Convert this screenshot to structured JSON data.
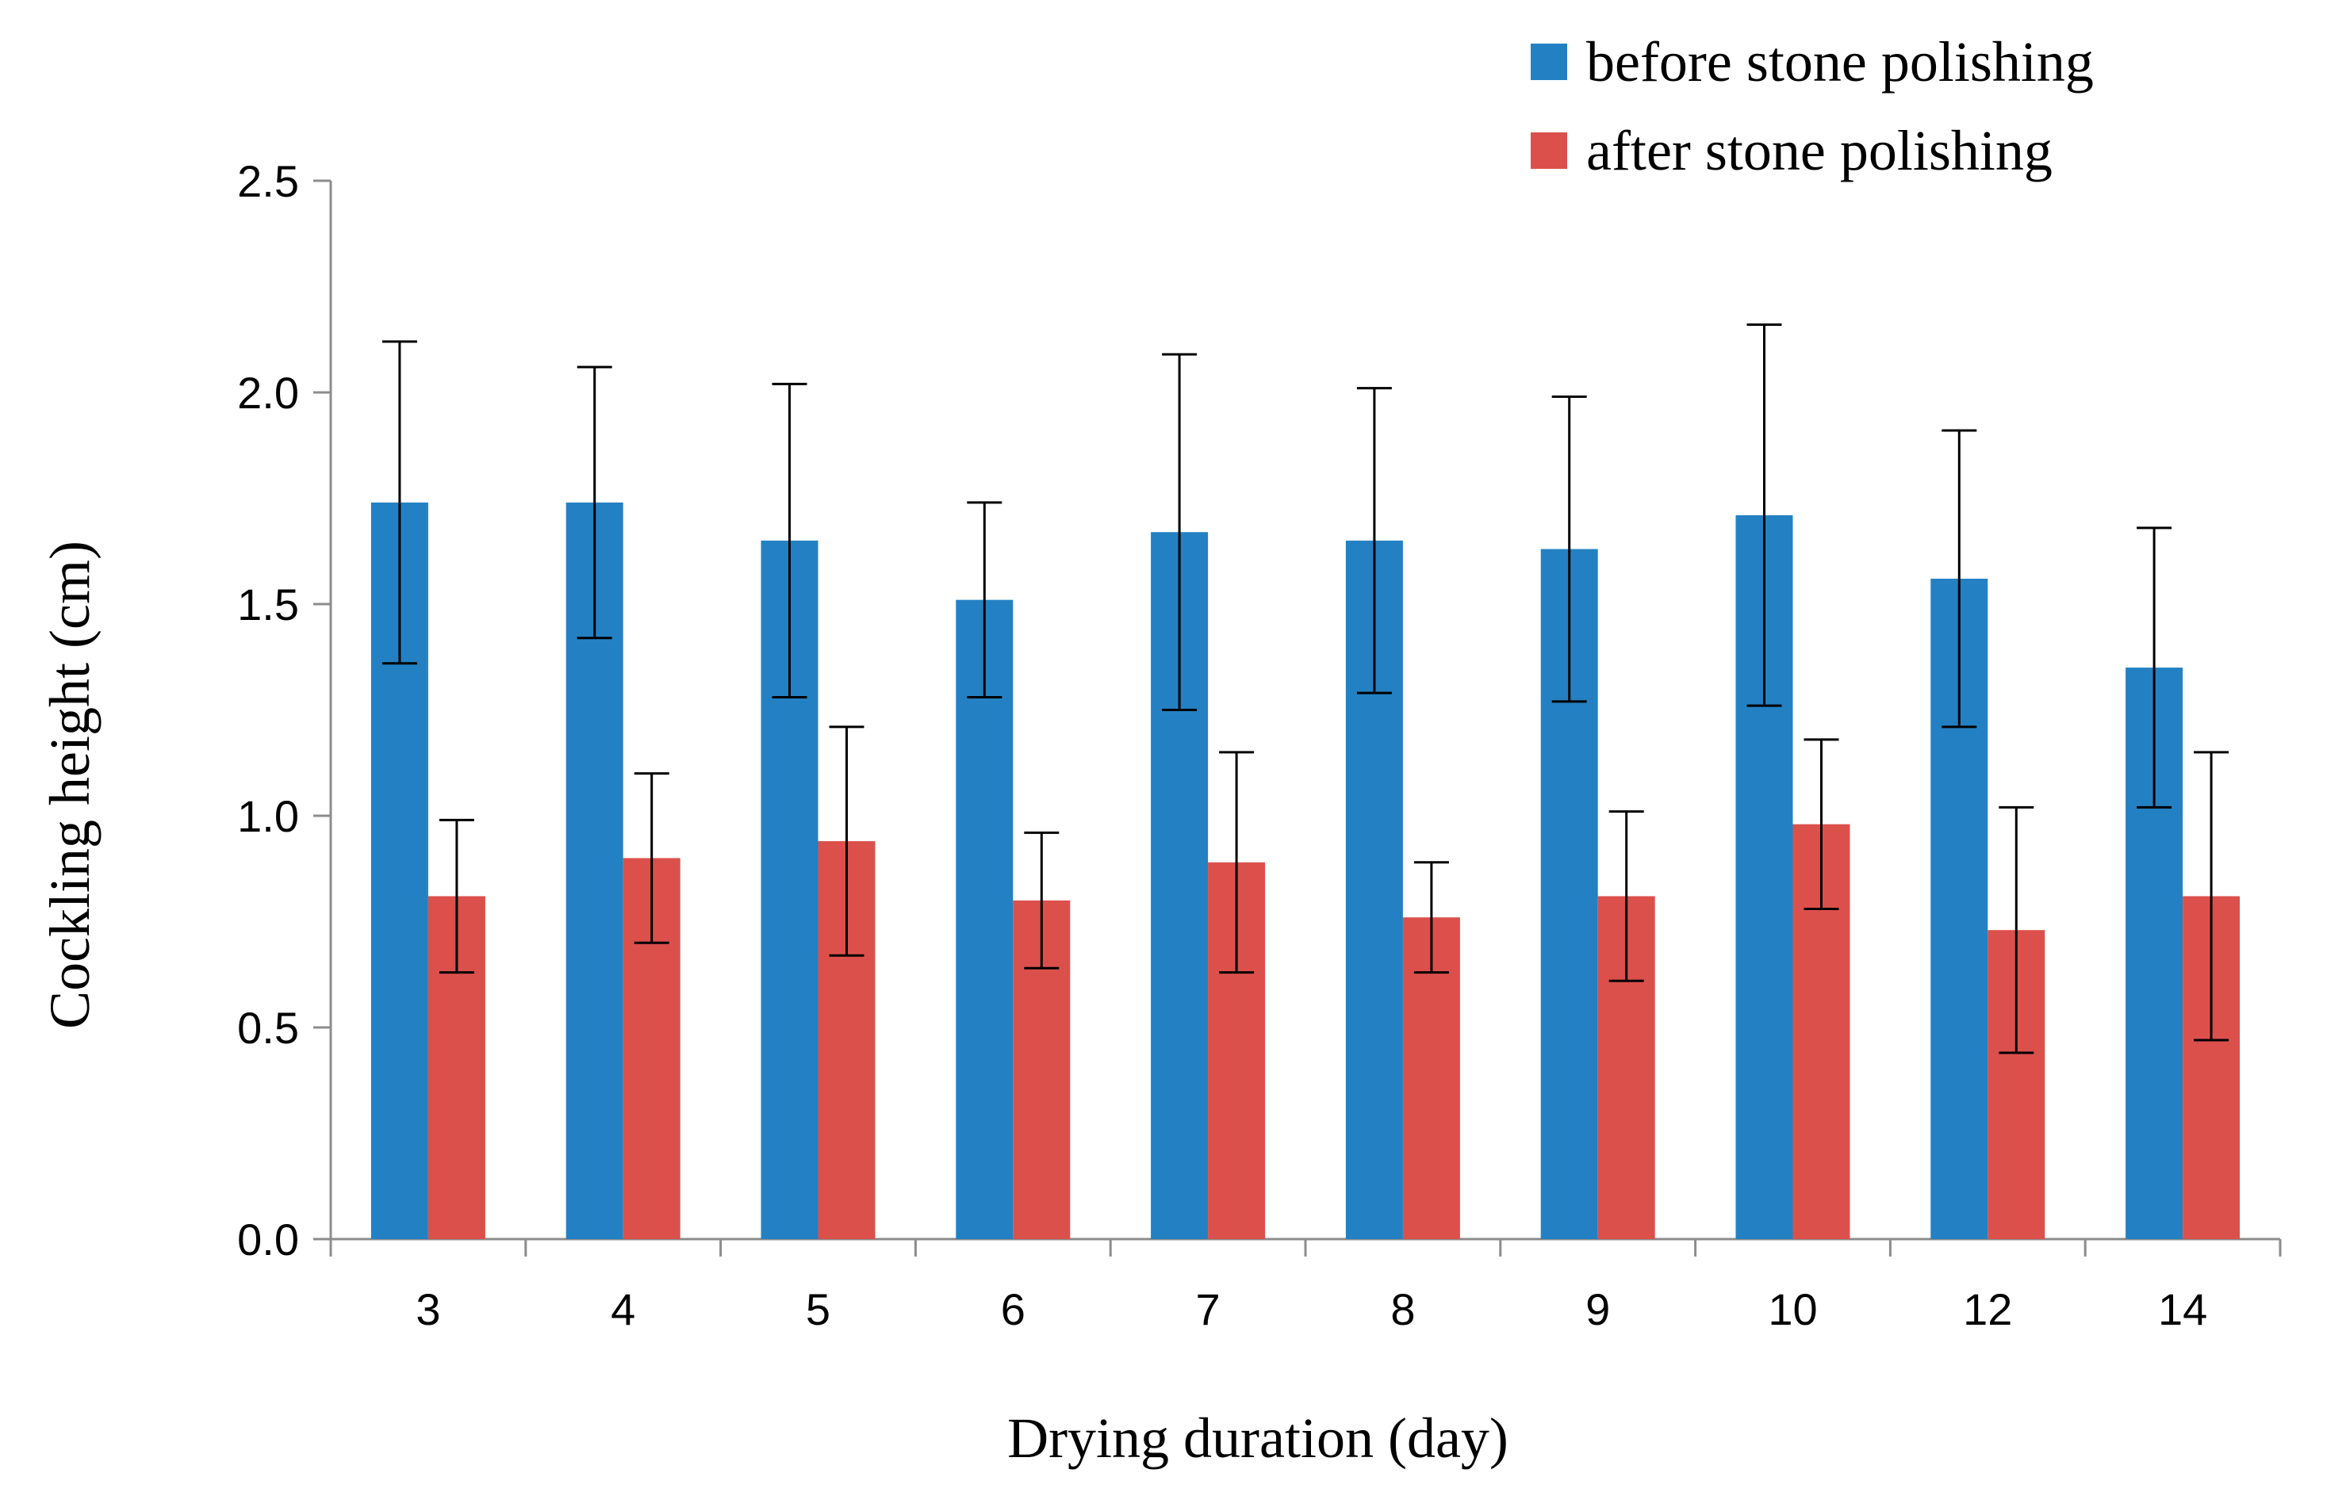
{
  "chart_data": {
    "type": "bar",
    "title": "",
    "xlabel": "Drying duration (day)",
    "ylabel": "Cockling height (cm)",
    "categories": [
      "3",
      "4",
      "5",
      "6",
      "7",
      "8",
      "9",
      "10",
      "12",
      "14"
    ],
    "ylim": [
      0,
      2.5
    ],
    "yticks": [
      "0.0",
      "0.5",
      "1.0",
      "1.5",
      "2.0",
      "2.5"
    ],
    "ytick_values": [
      0,
      0.5,
      1.0,
      1.5,
      2.0,
      2.5
    ],
    "grid": false,
    "legend_position": "top-right",
    "series": [
      {
        "name": "before stone polishing",
        "color": "#2381c3",
        "values": [
          1.74,
          1.74,
          1.65,
          1.51,
          1.67,
          1.65,
          1.63,
          1.71,
          1.56,
          1.35
        ],
        "errors": [
          0.38,
          0.32,
          0.37,
          0.23,
          0.42,
          0.36,
          0.36,
          0.45,
          0.35,
          0.33
        ]
      },
      {
        "name": "after stone polishing",
        "color": "#dc504c",
        "values": [
          0.81,
          0.9,
          0.94,
          0.8,
          0.89,
          0.76,
          0.81,
          0.98,
          0.73,
          0.81
        ],
        "errors": [
          0.18,
          0.2,
          0.27,
          0.16,
          0.26,
          0.13,
          0.2,
          0.2,
          0.29,
          0.34
        ]
      }
    ]
  }
}
